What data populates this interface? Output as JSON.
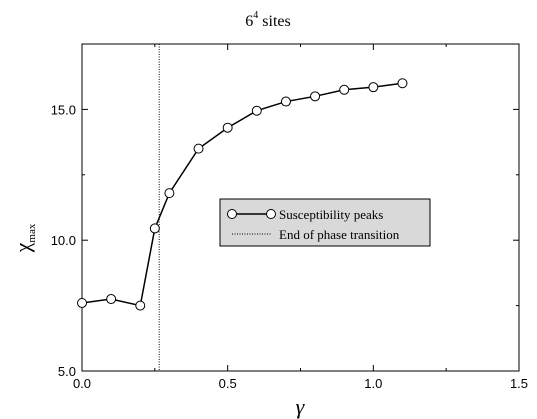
{
  "chart_data": {
    "type": "line",
    "title_base": "6",
    "title_sup": "4",
    "title_rest": " sites",
    "xlabel": "γ",
    "ylabel_main": "χ",
    "ylabel_sub": "max",
    "xlim": [
      0.0,
      1.5
    ],
    "ylim": [
      5.0,
      17.5
    ],
    "xticks": [
      0.0,
      0.5,
      1.0,
      1.5
    ],
    "xtick_labels": [
      "0.0",
      "0.5",
      "1.0",
      "1.5"
    ],
    "yticks": [
      5.0,
      10.0,
      15.0
    ],
    "ytick_labels": [
      "5.0",
      "10.0",
      "15.0"
    ],
    "grid": false,
    "legend_position": "center-right",
    "series": [
      {
        "name": "Susceptibility peaks",
        "style": "solid line with open circle markers",
        "x": [
          0.0,
          0.1,
          0.2,
          0.25,
          0.3,
          0.4,
          0.5,
          0.6,
          0.7,
          0.8,
          0.9,
          1.0,
          1.1
        ],
        "y": [
          7.6,
          7.75,
          7.5,
          10.45,
          11.8,
          13.5,
          14.3,
          14.95,
          15.3,
          15.5,
          15.75,
          15.85,
          16.0
        ]
      }
    ],
    "reference_line": {
      "name": "End of phase transition",
      "style": "dotted vertical line",
      "x": 0.265
    }
  }
}
